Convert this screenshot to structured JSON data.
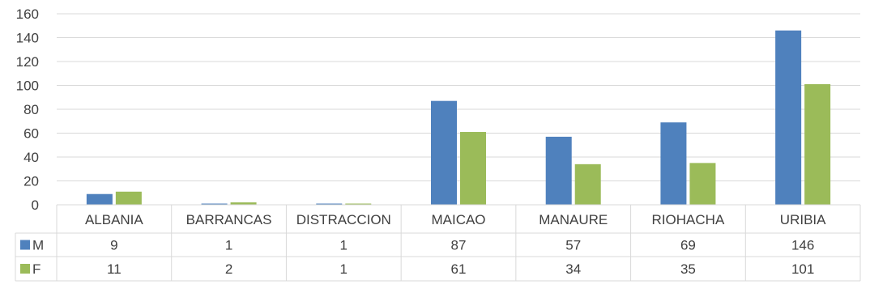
{
  "chart_data": {
    "type": "bar",
    "title": "",
    "xlabel": "",
    "ylabel": "",
    "ylim": [
      0,
      160
    ],
    "yticks": [
      0,
      20,
      40,
      60,
      80,
      100,
      120,
      140,
      160
    ],
    "grid": true,
    "legend": "data-table-left",
    "categories": [
      "ALBANIA",
      "BARRANCAS",
      "DISTRACCION",
      "MAICAO",
      "MANAURE",
      "RIOHACHA",
      "URIBIA"
    ],
    "series": [
      {
        "name": "M",
        "color": "#4F81BD",
        "values": [
          9,
          1,
          1,
          87,
          57,
          69,
          146
        ]
      },
      {
        "name": "F",
        "color": "#9BBB59",
        "values": [
          11,
          2,
          1,
          61,
          34,
          35,
          101
        ]
      }
    ]
  }
}
